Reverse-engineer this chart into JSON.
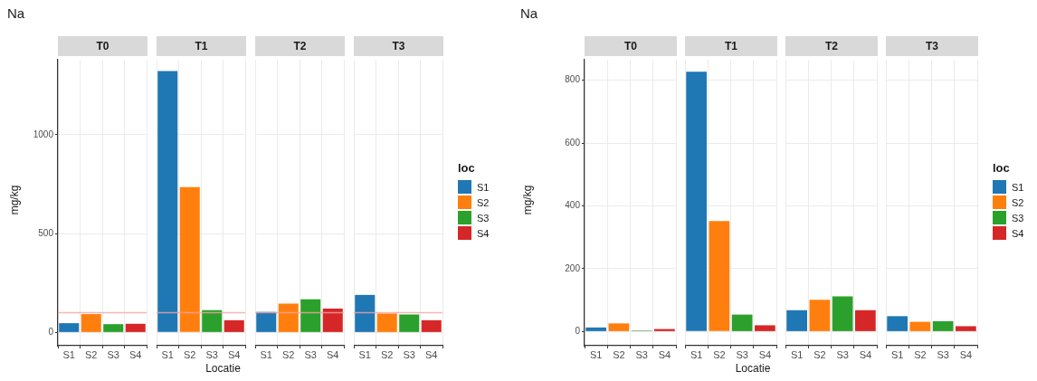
{
  "chart_data": [
    {
      "type": "bar",
      "title": "Na",
      "subtitle": "T0",
      "ylabel": "mg/kg",
      "categories": [
        "S1",
        "S2",
        "S3",
        "S4"
      ],
      "values": [
        47,
        93,
        42,
        44
      ],
      "colors": [
        "#1f77b4",
        "#ff7f0e",
        "#2ca02c",
        "#d62728"
      ],
      "ylim": [
        -67,
        1380
      ],
      "yticks": [
        0,
        500,
        1000
      ],
      "grid": true,
      "legend": false,
      "ref_lines": [
        {
          "axis": "y",
          "value": 100,
          "color": "#f6a3a3"
        }
      ]
    },
    {
      "type": "bar",
      "subtitle": "T1",
      "xlabel": "Locatie",
      "categories": [
        "S1",
        "S2",
        "S3",
        "S4"
      ],
      "values": [
        1323,
        736,
        113,
        62
      ],
      "colors": [
        "#1f77b4",
        "#ff7f0e",
        "#2ca02c",
        "#d62728"
      ],
      "ylim": [
        -67,
        1380
      ],
      "yticks": [
        0,
        500,
        1000
      ],
      "grid": true,
      "legend": false,
      "tick_labels": "x",
      "ref_lines": [
        {
          "axis": "y",
          "value": 100,
          "color": "#f6a3a3"
        }
      ]
    },
    {
      "type": "bar",
      "subtitle": "T2",
      "categories": [
        "S1",
        "S2",
        "S3",
        "S4"
      ],
      "values": [
        104,
        146,
        168,
        121
      ],
      "colors": [
        "#1f77b4",
        "#ff7f0e",
        "#2ca02c",
        "#d62728"
      ],
      "ylim": [
        -67,
        1380
      ],
      "yticks": [
        0,
        500,
        1000
      ],
      "grid": true,
      "legend": false,
      "tick_labels": "x",
      "ref_lines": [
        {
          "axis": "y",
          "value": 100,
          "color": "#f6a3a3"
        }
      ]
    },
    {
      "type": "bar",
      "subtitle": "T3",
      "categories": [
        "S1",
        "S2",
        "S3",
        "S4"
      ],
      "stacked": true,
      "legend_title": "loc",
      "legend": "right",
      "series": [
        {
          "name": "S1",
          "color": "#1f77b4",
          "values": [
            190,
            null,
            null,
            null
          ]
        },
        {
          "name": "S2",
          "color": "#ff7f0e",
          "values": [
            null,
            96,
            null,
            null
          ]
        },
        {
          "name": "S3",
          "color": "#2ca02c",
          "values": [
            null,
            null,
            91,
            null
          ]
        },
        {
          "name": "S4",
          "color": "#d62728",
          "values": [
            null,
            null,
            null,
            62
          ]
        }
      ],
      "ylim": [
        -67,
        1380
      ],
      "yticks": [
        0,
        500,
        1000
      ],
      "grid": true,
      "tick_labels": "x",
      "ref_lines": [
        {
          "axis": "y",
          "value": 100,
          "color": "#f6a3a3"
        }
      ]
    },
    {
      "type": "bar",
      "title": "Na",
      "subtitle": "T0",
      "ylabel": "mg/kg",
      "categories": [
        "S1",
        "S2",
        "S3",
        "S4"
      ],
      "values": [
        13,
        26,
        3,
        8
      ],
      "colors": [
        "#1f77b4",
        "#ff7f0e",
        "#2ca02c",
        "#d62728"
      ],
      "ylim": [
        -45,
        865
      ],
      "yticks": [
        0,
        200,
        400,
        600,
        800
      ],
      "grid": true,
      "legend": false
    },
    {
      "type": "bar",
      "subtitle": "T1",
      "xlabel": "Locatie",
      "categories": [
        "S1",
        "S2",
        "S3",
        "S4"
      ],
      "values": [
        827,
        352,
        54,
        20
      ],
      "colors": [
        "#1f77b4",
        "#ff7f0e",
        "#2ca02c",
        "#d62728"
      ],
      "ylim": [
        -45,
        865
      ],
      "yticks": [
        0,
        200,
        400,
        600,
        800
      ],
      "grid": true,
      "legend": false,
      "tick_labels": "x"
    },
    {
      "type": "bar",
      "subtitle": "T2",
      "categories": [
        "S1",
        "S2",
        "S3",
        "S4"
      ],
      "values": [
        68,
        101,
        112,
        68
      ],
      "colors": [
        "#1f77b4",
        "#ff7f0e",
        "#2ca02c",
        "#d62728"
      ],
      "ylim": [
        -45,
        865
      ],
      "yticks": [
        0,
        200,
        400,
        600,
        800
      ],
      "grid": true,
      "legend": false,
      "tick_labels": "x"
    },
    {
      "type": "bar",
      "subtitle": "T3",
      "categories": [
        "S1",
        "S2",
        "S3",
        "S4"
      ],
      "stacked": true,
      "legend_title": "loc",
      "legend": "right",
      "series": [
        {
          "name": "S1",
          "color": "#1f77b4",
          "values": [
            49,
            null,
            null,
            null
          ]
        },
        {
          "name": "S2",
          "color": "#ff7f0e",
          "values": [
            null,
            31,
            null,
            null
          ]
        },
        {
          "name": "S3",
          "color": "#2ca02c",
          "values": [
            null,
            null,
            33,
            null
          ]
        },
        {
          "name": "S4",
          "color": "#d62728",
          "values": [
            null,
            null,
            null,
            17
          ]
        }
      ],
      "ylim": [
        -45,
        865
      ],
      "yticks": [
        0,
        200,
        400,
        600,
        800
      ],
      "grid": true,
      "tick_labels": "x"
    }
  ]
}
